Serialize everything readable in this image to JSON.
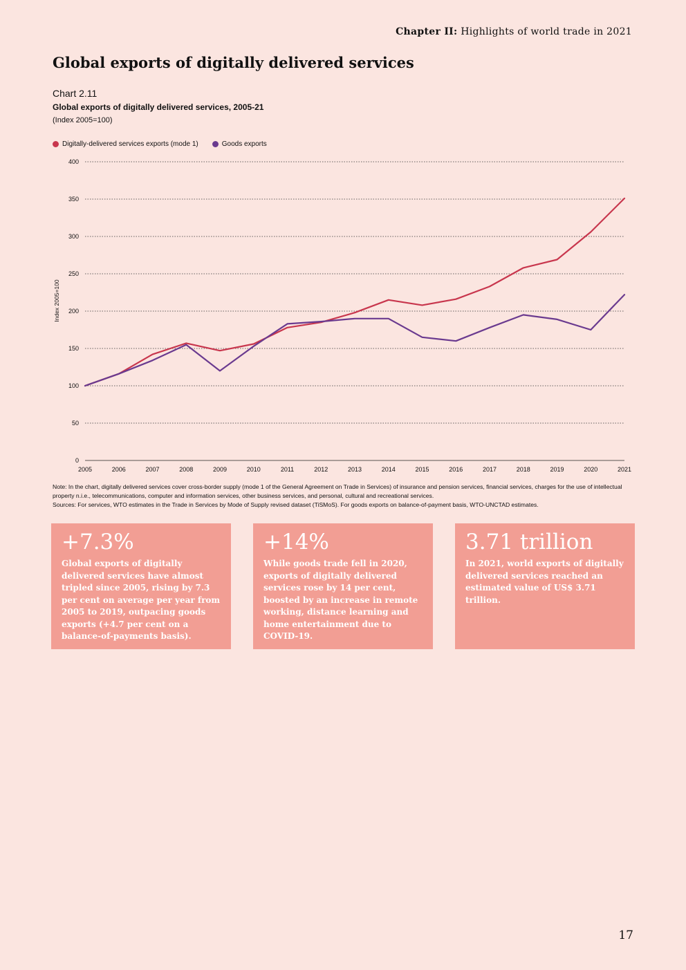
{
  "header": {
    "chapter": "Chapter II:",
    "section": "Highlights of world trade in 2021"
  },
  "page_title": "Global exports of digitally delivered services",
  "chart_meta": {
    "number": "Chart 2.11",
    "title": "Global exports of digitally delivered services, 2005-21",
    "subtitle": "(Index 2005=100)"
  },
  "legend": [
    {
      "label": "Digitally-delivered services exports (mode 1)",
      "color": "#c8364d"
    },
    {
      "label": "Goods exports",
      "color": "#6a3a8f"
    }
  ],
  "chart_data": {
    "type": "line",
    "x": [
      "2005",
      "2006",
      "2007",
      "2008",
      "2009",
      "2010",
      "2011",
      "2012",
      "2013",
      "2014",
      "2015",
      "2016",
      "2017",
      "2018",
      "2019",
      "2020",
      "2021"
    ],
    "series": [
      {
        "name": "Digitally-delivered services exports (mode 1)",
        "color": "#c8364d",
        "values": [
          100,
          116,
          142,
          157,
          147,
          156,
          178,
          185,
          198,
          215,
          208,
          216,
          233,
          258,
          269,
          306,
          351
        ]
      },
      {
        "name": "Goods exports",
        "color": "#6a3a8f",
        "values": [
          100,
          116,
          134,
          155,
          120,
          153,
          183,
          186,
          190,
          190,
          165,
          160,
          178,
          195,
          189,
          175,
          222
        ]
      }
    ],
    "ylim": [
      0,
      400
    ],
    "yticks": [
      "0",
      "50",
      "100",
      "150",
      "200",
      "250",
      "300",
      "350",
      "400"
    ],
    "ylabel": "Index 2005=100",
    "xlabel": "",
    "grid": true
  },
  "notes": {
    "note": "Note: In the chart, digitally delivered services cover cross-border supply (mode 1 of the General Agreement on Trade in Services) of insurance and pension services, financial services, charges for the use of intellectual property n.i.e., telecommunications, computer and information services, other business services, and personal, cultural and recreational services.",
    "sources": "Sources: For services, WTO estimates in the Trade in Services by Mode of Supply revised dataset (TiSMoS). For goods exports on balance-of-payment basis, WTO-UNCTAD estimates."
  },
  "cards": [
    {
      "figure": "+7.3%",
      "text": "Global exports of digitally delivered services have almost tripled since 2005, rising by 7.3 per cent on average per year from 2005 to 2019, outpacing goods exports (+4.7 per cent on a balance-of-payments basis)."
    },
    {
      "figure": "+14%",
      "text": "While goods trade fell in 2020, exports of digitally delivered services rose by 14 per cent, boosted by an increase in remote working, distance learning and home entertainment due to COVID-19."
    },
    {
      "figure": "3.71 trillion",
      "text": "In 2021, world exports of digitally delivered services reached an estimated value of US$ 3.71 trillion."
    }
  ],
  "page_number": "17"
}
